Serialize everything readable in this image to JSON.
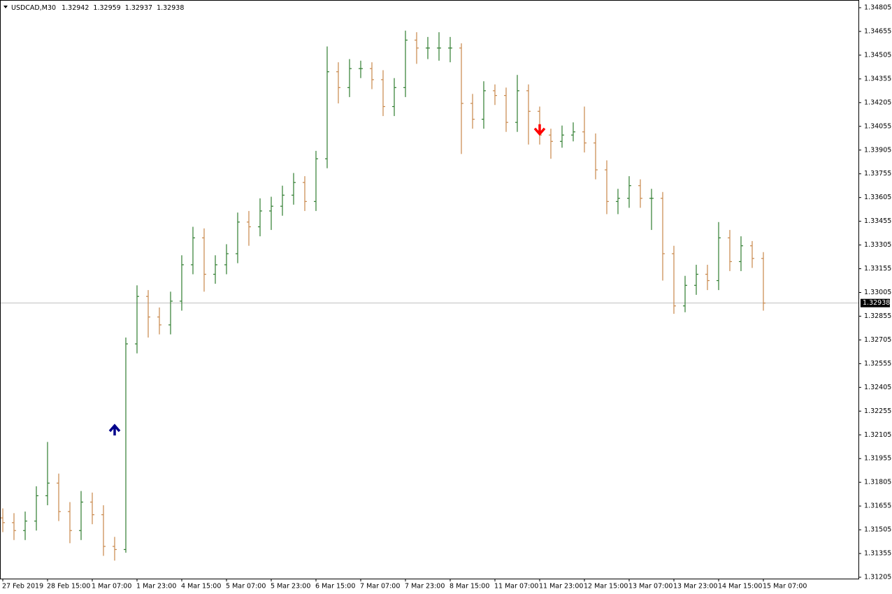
{
  "chart_data": {
    "type": "ohlc",
    "symbol": "USDCAD,M30",
    "header_values": [
      1.32942,
      1.32959,
      1.32937,
      1.32938
    ],
    "last_price": 1.32938,
    "up_color": "#2f7d2f",
    "down_color": "#c8874a",
    "categories": [
      "27 Feb 2019",
      null,
      null,
      null,
      "28 Feb 15:00",
      null,
      null,
      null,
      "1 Mar 07:00",
      null,
      null,
      null,
      "1 Mar 23:00",
      null,
      null,
      null,
      "4 Mar 15:00",
      null,
      null,
      null,
      "5 Mar 07:00",
      null,
      null,
      null,
      "5 Mar 23:00",
      null,
      null,
      null,
      "6 Mar 15:00",
      null,
      null,
      null,
      "7 Mar 07:00",
      null,
      null,
      null,
      "7 Mar 23:00",
      null,
      null,
      null,
      "8 Mar 15:00",
      null,
      null,
      null,
      "11 Mar 07:00",
      null,
      null,
      null,
      "11 Mar 23:00",
      null,
      null,
      null,
      "12 Mar 15:00",
      null,
      null,
      null,
      "13 Mar 07:00",
      null,
      null,
      null,
      "13 Mar 23:00",
      null,
      null,
      null,
      "14 Mar 15:00",
      null,
      null,
      null,
      "15 Mar 07:00"
    ],
    "open": [
      1.3158,
      1.3155,
      1.315,
      1.3156,
      1.3172,
      1.318,
      1.3162,
      1.315,
      1.3168,
      1.316,
      1.314,
      1.3138,
      1.3268,
      1.3298,
      1.3285,
      1.328,
      1.3295,
      1.3318,
      1.3335,
      1.3312,
      1.3318,
      1.3325,
      1.3345,
      1.3342,
      1.3352,
      1.3355,
      1.3362,
      1.337,
      1.3358,
      1.3385,
      1.344,
      1.343,
      1.3442,
      1.3442,
      1.3435,
      1.3418,
      1.343,
      1.346,
      1.3455,
      1.3455,
      1.3455,
      1.3455,
      1.342,
      1.341,
      1.3428,
      1.3425,
      1.3408,
      1.3428,
      1.3415,
      1.34,
      1.3396,
      1.34,
      1.3402,
      1.3395,
      1.3378,
      1.3358,
      1.336,
      1.3368,
      1.336,
      1.336,
      1.3325,
      1.3292,
      1.3305,
      1.3312,
      1.3308,
      1.3335,
      1.332,
      1.333,
      1.3322
    ],
    "high": [
      1.3164,
      1.3161,
      1.3162,
      1.3178,
      1.3206,
      1.3186,
      1.3168,
      1.3175,
      1.3174,
      1.3166,
      1.3146,
      1.3272,
      1.3305,
      1.3302,
      1.3291,
      1.3301,
      1.3324,
      1.3342,
      1.3341,
      1.3324,
      1.3331,
      1.3351,
      1.3352,
      1.336,
      1.3361,
      1.3368,
      1.3376,
      1.3374,
      1.339,
      1.3456,
      1.3446,
      1.3448,
      1.3447,
      1.3446,
      1.3441,
      1.3436,
      1.3466,
      1.3465,
      1.3462,
      1.3465,
      1.3462,
      1.3458,
      1.3426,
      1.3434,
      1.3432,
      1.343,
      1.3438,
      1.3432,
      1.3418,
      1.3404,
      1.3406,
      1.3408,
      1.3418,
      1.3401,
      1.3384,
      1.3366,
      1.3374,
      1.3372,
      1.3366,
      1.3364,
      1.333,
      1.3311,
      1.3318,
      1.3318,
      1.3345,
      1.334,
      1.3336,
      1.3333,
      1.3326
    ],
    "low": [
      1.3149,
      1.3144,
      1.3144,
      1.315,
      1.3166,
      1.3156,
      1.3142,
      1.3144,
      1.3154,
      1.3134,
      1.3131,
      1.3136,
      1.3262,
      1.3272,
      1.3274,
      1.3274,
      1.3289,
      1.3312,
      1.3301,
      1.3306,
      1.3312,
      1.3319,
      1.333,
      1.3336,
      1.334,
      1.3349,
      1.3356,
      1.3352,
      1.3352,
      1.3379,
      1.342,
      1.3424,
      1.3436,
      1.3429,
      1.3412,
      1.3412,
      1.3424,
      1.3445,
      1.3448,
      1.3447,
      1.3446,
      1.3388,
      1.3404,
      1.3404,
      1.3419,
      1.3402,
      1.3402,
      1.3394,
      1.3394,
      1.3385,
      1.3392,
      1.3396,
      1.3389,
      1.3372,
      1.335,
      1.335,
      1.3354,
      1.3354,
      1.334,
      1.3308,
      1.3287,
      1.3288,
      1.3299,
      1.3302,
      1.3302,
      1.3314,
      1.3314,
      1.3316,
      1.3289
    ],
    "close": [
      1.3155,
      1.315,
      1.3156,
      1.3172,
      1.318,
      1.3162,
      1.315,
      1.3168,
      1.316,
      1.314,
      1.3138,
      1.3268,
      1.3298,
      1.3285,
      1.328,
      1.3295,
      1.3318,
      1.3335,
      1.3312,
      1.3318,
      1.3325,
      1.3345,
      1.3342,
      1.3352,
      1.3355,
      1.3362,
      1.337,
      1.3358,
      1.3385,
      1.344,
      1.343,
      1.3442,
      1.3442,
      1.3435,
      1.3418,
      1.343,
      1.346,
      1.3455,
      1.3455,
      1.3455,
      1.3455,
      1.342,
      1.341,
      1.3428,
      1.3425,
      1.3408,
      1.3428,
      1.3415,
      1.34,
      1.3396,
      1.34,
      1.3402,
      1.3395,
      1.3378,
      1.3358,
      1.336,
      1.3368,
      1.336,
      1.336,
      1.3325,
      1.3292,
      1.3305,
      1.3312,
      1.3308,
      1.3335,
      1.332,
      1.333,
      1.3322,
      1.32938
    ],
    "markers": [
      {
        "x": 10,
        "value": 1.3215,
        "color": "#00008b",
        "direction": "up"
      },
      {
        "x": 48,
        "value": 1.3402,
        "color": "#ff0000",
        "direction": "down"
      }
    ],
    "ylim": [
      1.31205,
      1.34805
    ],
    "yticks": [
      1.31205,
      1.31355,
      1.31505,
      1.31655,
      1.31805,
      1.31955,
      1.32105,
      1.32255,
      1.32405,
      1.32555,
      1.32705,
      1.32855,
      1.33005,
      1.33155,
      1.33305,
      1.33455,
      1.33605,
      1.33755,
      1.33905,
      1.34055,
      1.34205,
      1.34355,
      1.34505,
      1.34655,
      1.34805
    ]
  }
}
